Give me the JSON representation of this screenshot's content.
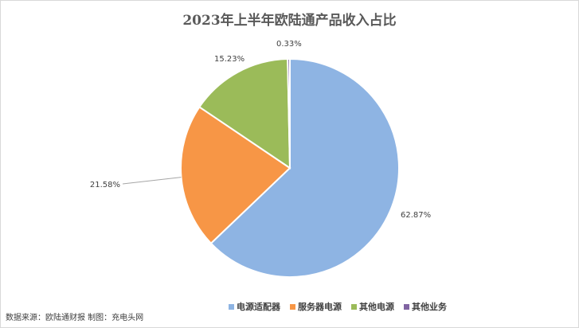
{
  "chart_data": {
    "type": "pie",
    "title": "2023年上半年欧陆通产品收入占比",
    "categories": [
      "电源适配器",
      "服务器电源",
      "其他电源",
      "其他业务"
    ],
    "values": [
      62.87,
      21.58,
      15.23,
      0.33
    ],
    "labels": [
      "62.87%",
      "21.58%",
      "15.23%",
      "0.33%"
    ],
    "colors": [
      "#8eb4e3",
      "#f79646",
      "#9bbb59",
      "#8064a2"
    ],
    "legend_position": "bottom"
  },
  "source_note": "数据来源：欧陆通财报 制图：充电头网"
}
